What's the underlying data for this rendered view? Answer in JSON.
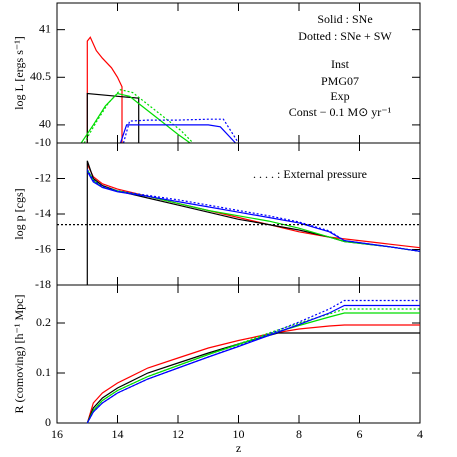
{
  "chart_data": [
    {
      "type": "line",
      "ylabel": "log L [ergs s⁻¹]",
      "xlim": [
        16,
        4
      ],
      "ylim": [
        39.81,
        41.28
      ],
      "yticks": [
        40,
        40.5,
        41
      ],
      "annotations": [
        "Solid : SNe",
        "Dotted : SNe + SW"
      ],
      "series": [
        {
          "name": "Inst",
          "color": "#ff0000",
          "x": [
            15,
            15,
            14.9,
            14.7,
            14.5,
            14.2,
            14.0,
            13.85,
            13.85
          ],
          "values": [
            39.81,
            40.88,
            40.92,
            40.78,
            40.7,
            40.6,
            40.5,
            40.4,
            39.81
          ]
        },
        {
          "name": "PMG07",
          "color": "#000000",
          "x": [
            15,
            15,
            14,
            13.3,
            13.3
          ],
          "values": [
            39.81,
            40.33,
            40.3,
            40.28,
            39.81
          ]
        },
        {
          "name": "Exp",
          "color": "#00dd00",
          "x": [
            15.2,
            14.8,
            14.4,
            14.0,
            13.6,
            13.2,
            12.6,
            12.0,
            11.6
          ],
          "values": [
            39.81,
            40.0,
            40.2,
            40.33,
            40.3,
            40.2,
            40.05,
            39.9,
            39.81
          ]
        },
        {
          "color": "#00dd00",
          "dash": true,
          "x": [
            15.1,
            14.7,
            14.3,
            13.9,
            13.5,
            13.1,
            12.5,
            11.9,
            11.5
          ],
          "values": [
            39.81,
            40.03,
            40.23,
            40.37,
            40.34,
            40.24,
            40.09,
            39.94,
            39.81
          ]
        },
        {
          "name": "Const − 0.1 M⊙ yr⁻¹",
          "color": "#0000ff",
          "x": [
            13.9,
            13.7,
            13,
            12,
            11,
            10.6,
            10.1
          ],
          "values": [
            39.81,
            40.0,
            40.0,
            40.0,
            40.0,
            39.98,
            39.81
          ]
        },
        {
          "color": "#0000ff",
          "dash": true,
          "x": [
            13.8,
            13.6,
            13,
            12,
            11,
            10.5,
            10.0
          ],
          "values": [
            39.81,
            40.04,
            40.05,
            40.05,
            40.06,
            40.06,
            39.81
          ]
        }
      ]
    },
    {
      "type": "line",
      "ylabel": "log p [cgs]",
      "xlim": [
        16,
        4
      ],
      "ylim": [
        -18,
        -10
      ],
      "yticks": [
        -18,
        -16,
        -14,
        -12,
        -10
      ],
      "annotations": [
        ". . . . : External pressure"
      ],
      "series": [
        {
          "color": "#ff0000",
          "x": [
            15,
            14.8,
            14.5,
            14,
            13,
            12,
            11,
            10,
            9,
            8,
            7,
            6,
            5,
            4
          ],
          "values": [
            -11.2,
            -11.9,
            -12.3,
            -12.6,
            -13.0,
            -13.4,
            -13.8,
            -14.2,
            -14.6,
            -15.0,
            -15.3,
            -15.5,
            -15.7,
            -15.9
          ]
        },
        {
          "color": "#000000",
          "x": [
            15,
            15,
            14.8,
            14.5,
            14,
            13,
            12,
            11,
            10,
            9,
            8,
            7,
            6.5,
            5,
            4
          ],
          "values": [
            -18,
            -11.0,
            -12.0,
            -12.4,
            -12.7,
            -13.1,
            -13.5,
            -13.9,
            -14.3,
            -14.6,
            -14.9,
            -15.3,
            -15.55,
            -15.85,
            -16.1
          ]
        },
        {
          "color": "#00dd00",
          "x": [
            15,
            14.8,
            14.5,
            14,
            13,
            12,
            11,
            10,
            9,
            8,
            7,
            6.5,
            5,
            4
          ],
          "values": [
            -11.5,
            -12.1,
            -12.5,
            -12.7,
            -13.0,
            -13.4,
            -13.8,
            -14.1,
            -14.4,
            -14.8,
            -15.3,
            -15.55,
            -15.85,
            -16.1
          ]
        },
        {
          "color": "#0000ff",
          "x": [
            15,
            14.8,
            14.5,
            14,
            13,
            12,
            11,
            10,
            9,
            8,
            7,
            6.5,
            5,
            4
          ],
          "values": [
            -11.6,
            -12.2,
            -12.5,
            -12.75,
            -13.0,
            -13.3,
            -13.6,
            -13.9,
            -14.2,
            -14.5,
            -15.0,
            -15.5,
            -15.85,
            -16.1
          ]
        },
        {
          "color": "#0000ff",
          "dash": true,
          "x": [
            15,
            14.8,
            14.5,
            14,
            13,
            12,
            11,
            10,
            9,
            8,
            7,
            6.5,
            5,
            4
          ],
          "values": [
            -11.5,
            -12.1,
            -12.45,
            -12.7,
            -12.95,
            -13.2,
            -13.5,
            -13.8,
            -14.1,
            -14.45,
            -14.95,
            -15.5,
            -15.85,
            -16.1
          ]
        },
        {
          "color": "#000000",
          "dash": true,
          "x": [
            16,
            4
          ],
          "values": [
            -14.6,
            -14.6
          ]
        }
      ]
    },
    {
      "type": "line",
      "ylabel": "R (comoving) [h⁻¹ Mpc]",
      "xlabel": "z",
      "xlim": [
        16,
        4
      ],
      "xticks": [
        16,
        14,
        12,
        10,
        8,
        6,
        4
      ],
      "ylim": [
        0,
        0.276
      ],
      "yticks": [
        0,
        0.1,
        0.2
      ],
      "series": [
        {
          "color": "#ff0000",
          "x": [
            15,
            14.8,
            14.5,
            14,
            13,
            12,
            11,
            10,
            9,
            8,
            7,
            6.5,
            4
          ],
          "values": [
            0,
            0.04,
            0.06,
            0.08,
            0.11,
            0.13,
            0.15,
            0.165,
            0.178,
            0.188,
            0.194,
            0.196,
            0.196
          ]
        },
        {
          "color": "#000000",
          "x": [
            15,
            14.8,
            14.5,
            14,
            13,
            12,
            11,
            10,
            9,
            8.7,
            4
          ],
          "values": [
            0,
            0.03,
            0.05,
            0.07,
            0.1,
            0.12,
            0.14,
            0.158,
            0.175,
            0.18,
            0.18
          ]
        },
        {
          "color": "#00dd00",
          "x": [
            15,
            14.8,
            14.5,
            14,
            13,
            12,
            11,
            10,
            9,
            8,
            7,
            6.5,
            4
          ],
          "values": [
            0,
            0.025,
            0.045,
            0.065,
            0.093,
            0.115,
            0.137,
            0.157,
            0.177,
            0.195,
            0.212,
            0.22,
            0.22
          ]
        },
        {
          "color": "#00dd00",
          "dash": true,
          "x": [
            15,
            14.8,
            14.5,
            14,
            13,
            12,
            11,
            10,
            9,
            8,
            7,
            6.5,
            4
          ],
          "values": [
            0,
            0.025,
            0.045,
            0.065,
            0.093,
            0.115,
            0.137,
            0.158,
            0.18,
            0.2,
            0.218,
            0.228,
            0.228
          ]
        },
        {
          "color": "#0000ff",
          "x": [
            15,
            14.8,
            14.5,
            14,
            13,
            12,
            11,
            10,
            9,
            8,
            7,
            6.5,
            4
          ],
          "values": [
            0,
            0.022,
            0.04,
            0.06,
            0.088,
            0.11,
            0.132,
            0.153,
            0.175,
            0.197,
            0.22,
            0.235,
            0.235
          ]
        },
        {
          "color": "#0000ff",
          "dash": true,
          "x": [
            15,
            14.8,
            14.5,
            14,
            13,
            12,
            11,
            10,
            9,
            8,
            7,
            6.5,
            4
          ],
          "values": [
            0,
            0.022,
            0.04,
            0.06,
            0.088,
            0.11,
            0.132,
            0.154,
            0.178,
            0.202,
            0.228,
            0.245,
            0.245
          ]
        }
      ]
    }
  ]
}
